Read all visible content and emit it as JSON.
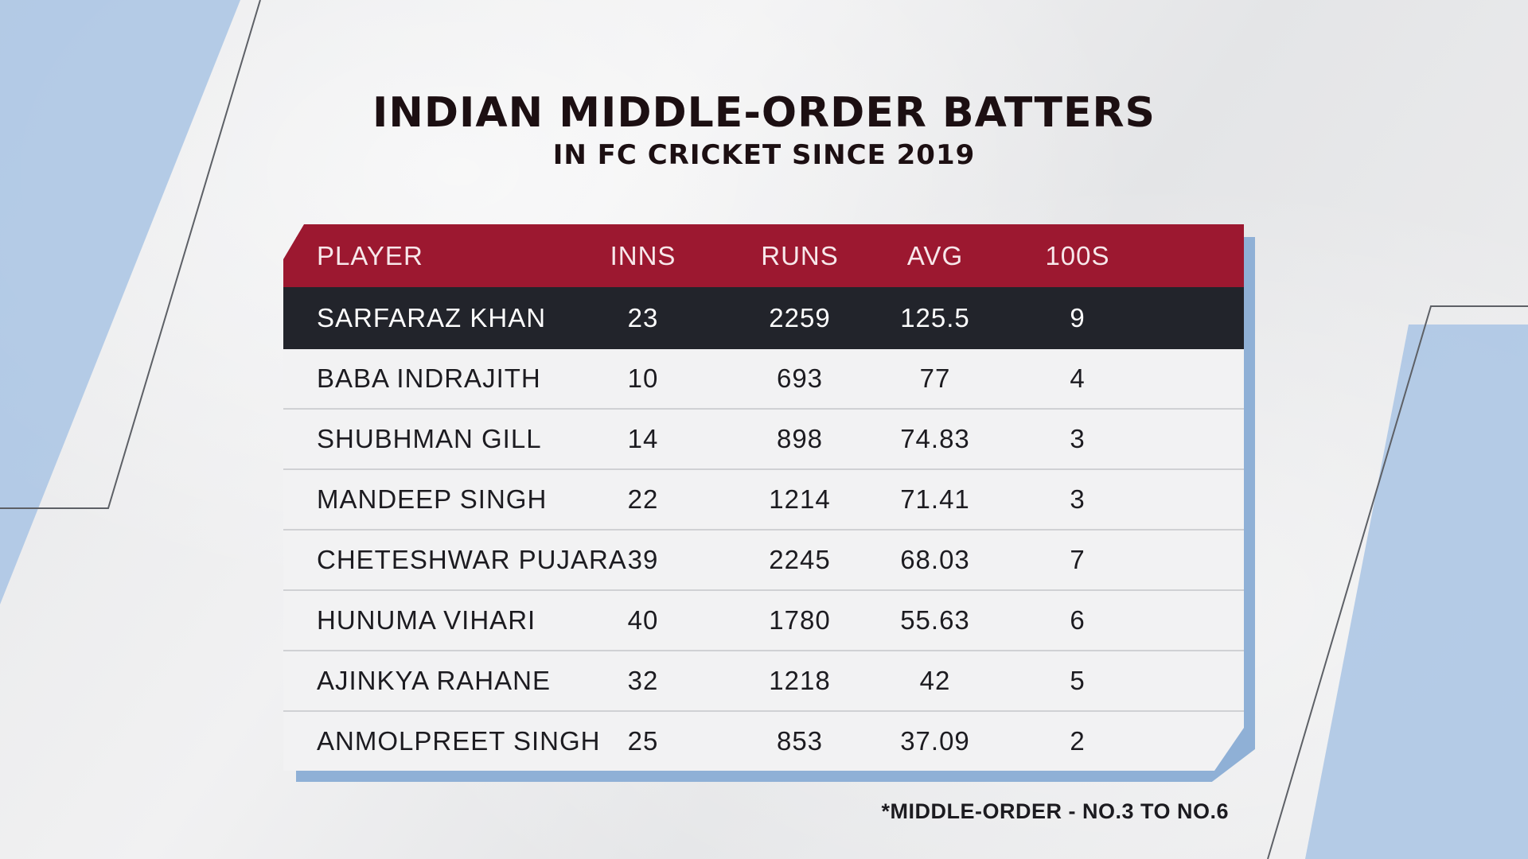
{
  "chart_data": {
    "type": "table",
    "title": "INDIAN MIDDLE-ORDER BATTERS",
    "subtitle": "IN FC CRICKET SINCE 2019",
    "columns": [
      "PLAYER",
      "INNS",
      "RUNS",
      "AVG",
      "100S"
    ],
    "rows": [
      {
        "player": "SARFARAZ KHAN",
        "inns": "23",
        "runs": "2259",
        "avg": "125.5",
        "hundreds": "9",
        "highlight": true
      },
      {
        "player": "BABA INDRAJITH",
        "inns": "10",
        "runs": "693",
        "avg": "77",
        "hundreds": "4",
        "highlight": false
      },
      {
        "player": "SHUBHMAN GILL",
        "inns": "14",
        "runs": "898",
        "avg": "74.83",
        "hundreds": "3",
        "highlight": false
      },
      {
        "player": "MANDEEP SINGH",
        "inns": "22",
        "runs": "1214",
        "avg": "71.41",
        "hundreds": "3",
        "highlight": false
      },
      {
        "player": "CHETESHWAR PUJARA",
        "inns": "39",
        "runs": "2245",
        "avg": "68.03",
        "hundreds": "7",
        "highlight": false
      },
      {
        "player": "HUNUMA VIHARI",
        "inns": "40",
        "runs": "1780",
        "avg": "55.63",
        "hundreds": "6",
        "highlight": false
      },
      {
        "player": "AJINKYA RAHANE",
        "inns": "32",
        "runs": "1218",
        "avg": "42",
        "hundreds": "5",
        "highlight": false
      },
      {
        "player": "ANMOLPREET SINGH",
        "inns": "25",
        "runs": "853",
        "avg": "37.09",
        "hundreds": "2",
        "highlight": false
      }
    ],
    "footnote": "*MIDDLE-ORDER - NO.3 TO NO.6"
  },
  "colors": {
    "header_bg": "#9c1830",
    "highlight_bg": "#22242b",
    "shadow": "#8fb0d6",
    "accent_blue": "#a9c4e4"
  }
}
